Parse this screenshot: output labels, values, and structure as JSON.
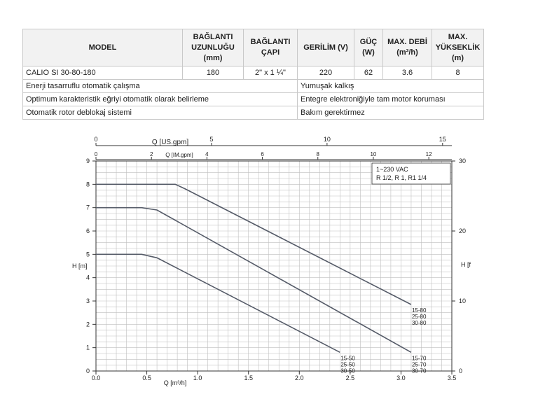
{
  "table": {
    "headers": {
      "model": "MODEL",
      "length": [
        "BAĞLANTI",
        "UZUNLUĞU",
        "(mm)"
      ],
      "diameter": [
        "BAĞLANTI",
        "ÇAPI"
      ],
      "voltage": "GERİLİM (V)",
      "power": [
        "GÜÇ",
        "(W)"
      ],
      "flow": [
        "MAX. DEBİ",
        "(m³/h)"
      ],
      "head": [
        "MAX.",
        "YÜKSEKLİK",
        "(m)"
      ]
    },
    "row": {
      "model": "CALIO SI 30-80-180",
      "length": "180",
      "diameter": "2\" x 1 ¼\"",
      "voltage": "220",
      "power": "62",
      "flow": "3.6",
      "head": "8"
    },
    "features": [
      {
        "left": "Enerji tasarruflu otomatik çalışma",
        "right": "Yumuşak kalkış"
      },
      {
        "left": "Optimum karakteristik eğriyi otomatik olarak belirleme",
        "right": "Entegre elektroniğiyle tam motor koruması"
      },
      {
        "left": "Otomatik rotor deblokaj sistemi",
        "right": "Bakım gerektirmez"
      }
    ]
  },
  "chart_data": {
    "type": "line",
    "xlabel": "Q [m³/h]",
    "ylabel": "H [m]",
    "ylabel_right": "H [f",
    "xlim": [
      0,
      3.5
    ],
    "ylim": [
      0,
      9
    ],
    "x_ticks": [
      "0.0",
      "0.5",
      "1.0",
      "1.5",
      "2.0",
      "2.5",
      "3.0",
      "3.5"
    ],
    "y_ticks": [
      "0",
      "1",
      "2",
      "3",
      "4",
      "5",
      "6",
      "7",
      "8",
      "9"
    ],
    "right_axis": {
      "range": [
        0,
        30
      ],
      "ticks": [
        "0",
        "10",
        "20",
        "30"
      ]
    },
    "top_axis_usgpm": {
      "label": "Q [US.gpm]",
      "range": [
        0,
        15.4
      ],
      "ticks": [
        "0",
        "5",
        "10",
        "15"
      ]
    },
    "top_axis_imgpm": {
      "label": "Q [IM.gpm]",
      "range": [
        0,
        12.83
      ],
      "ticks": [
        "0",
        "2",
        "4",
        "6",
        "8",
        "10",
        "12"
      ]
    },
    "grid": true,
    "info_box": [
      "1~230 VAC",
      "R 1/2, R 1, R1 1/4"
    ],
    "series": [
      {
        "labels": [
          "15-80",
          "25-80",
          "30-80"
        ],
        "points": [
          [
            0,
            8.0
          ],
          [
            0.78,
            8.0
          ],
          [
            0.88,
            7.8
          ],
          [
            3.1,
            2.85
          ]
        ]
      },
      {
        "labels": [
          "15-70",
          "25-70",
          "30-70"
        ],
        "points": [
          [
            0,
            7.0
          ],
          [
            0.45,
            7.0
          ],
          [
            0.6,
            6.9
          ],
          [
            3.1,
            0.8
          ]
        ]
      },
      {
        "labels": [
          "15-50",
          "25-50",
          "30-50"
        ],
        "points": [
          [
            0,
            5.0
          ],
          [
            0.45,
            5.0
          ],
          [
            0.6,
            4.85
          ],
          [
            2.4,
            0.8
          ]
        ]
      }
    ],
    "colors": {
      "curve": "#555b68",
      "grid": "#bfbfbf",
      "frame": "#333333"
    }
  }
}
